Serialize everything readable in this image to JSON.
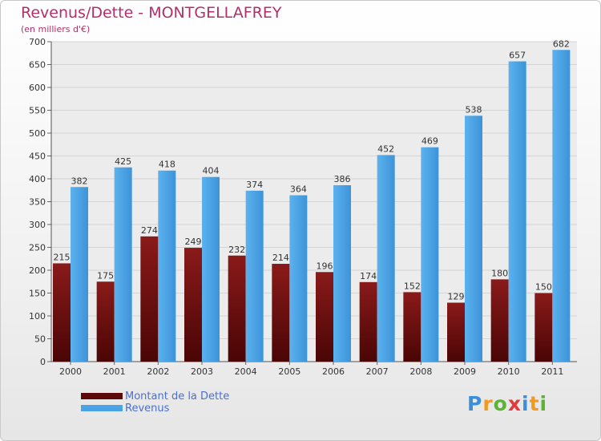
{
  "title": "Revenus/Dette - MONTGELLAFREY",
  "subtitle": "(en milliers d'€)",
  "logo": {
    "letters": [
      {
        "ch": "P",
        "color": "#3a8fd6"
      },
      {
        "ch": "r",
        "color": "#f29a1d"
      },
      {
        "ch": "o",
        "color": "#5cb531"
      },
      {
        "ch": "x",
        "color": "#e23a3a"
      },
      {
        "ch": "i",
        "color": "#3a8fd6"
      },
      {
        "ch": "t",
        "color": "#f29a1d"
      },
      {
        "ch": "i",
        "color": "#5cb531"
      }
    ]
  },
  "chart_data": {
    "type": "bar",
    "title": "Revenus/Dette - MONTGELLAFREY",
    "ylabel": "(en milliers d'€)",
    "xlabel": "",
    "categories": [
      "2000",
      "2001",
      "2002",
      "2003",
      "2004",
      "2005",
      "2006",
      "2007",
      "2008",
      "2009",
      "2010",
      "2011"
    ],
    "series": [
      {
        "name": "Montant de la Dette",
        "color": "#7a1010",
        "values": [
          215,
          175,
          274,
          249,
          232,
          214,
          196,
          174,
          152,
          129,
          180,
          150
        ]
      },
      {
        "name": "Revenus",
        "color": "#4aa3e6",
        "values": [
          382,
          425,
          418,
          404,
          374,
          364,
          386,
          452,
          469,
          538,
          657,
          682
        ]
      }
    ],
    "ylim": [
      0,
      700
    ],
    "yticks": [
      0,
      50,
      100,
      150,
      200,
      250,
      300,
      350,
      400,
      450,
      500,
      550,
      600,
      650,
      700
    ],
    "grid": true,
    "legend": "bottom-left"
  }
}
